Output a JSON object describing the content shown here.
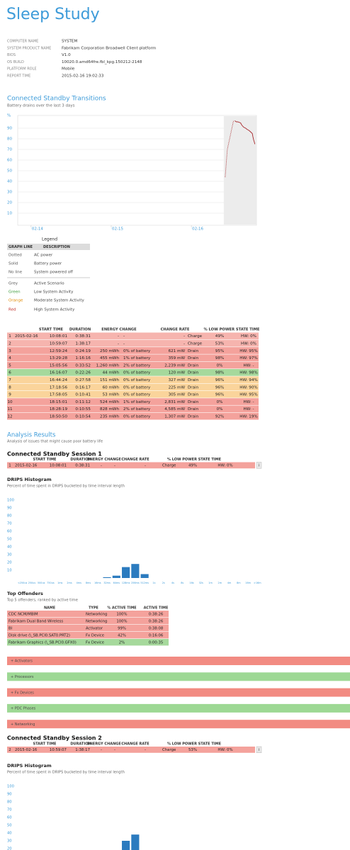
{
  "title": "Sleep Study",
  "system_info": {
    "rows": [
      [
        "COMPUTER NAME",
        "SYSTEM"
      ],
      [
        "SYSTEM PRODUCT NAME",
        "Fabrikam Corporation Broadwell Client platform"
      ],
      [
        "BIOS",
        "V1.0"
      ],
      [
        "OS BUILD",
        "10020.0.amd64fre.fbl_kpg.150212-2148"
      ],
      [
        "PLATFORM ROLE",
        "Mobile"
      ],
      [
        "REPORT TIME",
        "2015-02-16 19:02:33"
      ]
    ]
  },
  "transitions": {
    "heading": "Connected Standby Transitions",
    "subtitle": "Battery drains over the last 3 days",
    "chart": {
      "type": "line",
      "y_label": "%",
      "xlim": [
        "2015-02-13T20:00",
        "2015-02-16T19:30"
      ],
      "xticks": [
        {
          "value": "2015-02-14T00:00",
          "label": "02-14"
        },
        {
          "value": "2015-02-15T00:00",
          "label": "02-15"
        },
        {
          "value": "2015-02-16T00:00",
          "label": "02-16"
        }
      ],
      "ylim": [
        0,
        100
      ],
      "yticks": [
        10,
        20,
        30,
        40,
        50,
        60,
        70,
        80,
        90
      ],
      "grid": true,
      "series": [
        {
          "style": "dotted",
          "color": "#a8282c",
          "x": [
            "2015-02-16T10:08",
            "2015-02-16T10:46",
            "2015-02-16T12:37"
          ],
          "values": [
            44,
            70,
            97
          ]
        },
        {
          "style": "solid",
          "color": "#a8282c",
          "x": [
            "2015-02-16T12:59",
            "2015-02-16T13:29",
            "2015-02-16T13:53",
            "2015-02-16T14:45",
            "2015-02-16T15:05",
            "2015-02-16T15:39",
            "2015-02-16T16:16",
            "2015-02-16T16:38",
            "2015-02-16T17:12",
            "2015-02-16T17:35",
            "2015-02-16T18:15",
            "2015-02-16T18:26",
            "2015-02-16T18:39",
            "2015-02-16T18:51",
            "2015-02-16T19:01"
          ],
          "values": [
            97,
            96,
            96,
            95,
            93,
            91,
            90,
            89,
            88,
            87,
            85,
            82,
            79,
            77,
            75
          ]
        }
      ]
    }
  },
  "legend": {
    "title": "Legend",
    "columns": [
      "GRAPH LINE",
      "DESCRIPTION"
    ],
    "rows": [
      {
        "line": "Dotted",
        "description": "AC power",
        "color": "#555555"
      },
      {
        "line": "Solid",
        "description": "Battery power",
        "color": "#555555"
      },
      {
        "line": "No line",
        "description": "System powered off",
        "color": "#555555"
      },
      {
        "line": "Grey",
        "description": "Active Scenario",
        "color": "#555555"
      },
      {
        "line": "Green",
        "description": "Low System Activity",
        "color": "#3a9a3a"
      },
      {
        "line": "Orange",
        "description": "Moderate System Activity",
        "color": "#e08a00"
      },
      {
        "line": "Red",
        "description": "High System Activity",
        "color": "#c0302a"
      }
    ]
  },
  "sessions_table": {
    "columns": [
      "START TIME",
      "DURATION",
      "ENERGY CHANGE",
      "CHANGE RATE",
      "% LOW POWER STATE TIME"
    ],
    "rows": [
      {
        "color": "#f6b4ae",
        "cells": [
          "1",
          "2015-02-16",
          "10:08:01",
          "0:38:31",
          "-",
          "-",
          "-",
          "Charge",
          "49%",
          "HW: 0%"
        ]
      },
      {
        "color": "#f6b4ae",
        "cells": [
          "2",
          "",
          "10:59:07",
          "1:38:17",
          "-",
          "-",
          "-",
          "Charge",
          "53%",
          "HW: 0%"
        ]
      },
      {
        "color": "#f4a29c",
        "cells": [
          "3",
          "",
          "12:59:24",
          "0:24:19",
          "250 mWh",
          "0% of battery",
          "621 mW",
          "Drain",
          "95%",
          "HW: 95%"
        ]
      },
      {
        "color": "#f4a29c",
        "cells": [
          "4",
          "",
          "13:29:28",
          "1:16:16",
          "455 mWh",
          "1% of battery",
          "359 mW",
          "Drain",
          "98%",
          "HW: 97%"
        ]
      },
      {
        "color": "#f4a29c",
        "cells": [
          "5",
          "",
          "15:05:56",
          "0:33:52",
          "1,260 mWh",
          "2% of battery",
          "2,239 mW",
          "Drain",
          "0%",
          "HW: -"
        ]
      },
      {
        "color": "#a6d99c",
        "cells": [
          "6",
          "",
          "16:16:07",
          "0:22:26",
          "44 mWh",
          "0% of battery",
          "120 mW",
          "Drain",
          "98%",
          "HW: 98%"
        ]
      },
      {
        "color": "#fad49b",
        "cells": [
          "7",
          "",
          "16:44:24",
          "0:27:58",
          "151 mWh",
          "0% of battery",
          "327 mW",
          "Drain",
          "96%",
          "HW: 94%"
        ]
      },
      {
        "color": "#fad49b",
        "cells": [
          "8",
          "",
          "17:18:56",
          "0:16:17",
          "60 mWh",
          "0% of battery",
          "225 mW",
          "Drain",
          "96%",
          "HW: 90%"
        ]
      },
      {
        "color": "#fad49b",
        "cells": [
          "9",
          "",
          "17:58:05",
          "0:10:41",
          "53 mWh",
          "0% of battery",
          "305 mW",
          "Drain",
          "96%",
          "HW: 95%"
        ]
      },
      {
        "color": "#f4a29c",
        "cells": [
          "10",
          "",
          "18:15:01",
          "0:11:12",
          "524 mWh",
          "1% of battery",
          "2,831 mW",
          "Drain",
          "0%",
          "HW: -"
        ]
      },
      {
        "color": "#f4a29c",
        "cells": [
          "11",
          "",
          "18:28:19",
          "0:10:55",
          "828 mWh",
          "2% of battery",
          "4,585 mW",
          "Drain",
          "0%",
          "HW: -"
        ]
      },
      {
        "color": "#f4a29c",
        "cells": [
          "12",
          "",
          "18:50:50",
          "0:10:54",
          "235 mWh",
          "0% of battery",
          "1,307 mW",
          "Drain",
          "92%",
          "HW: 19%"
        ]
      }
    ]
  },
  "analysis": {
    "heading": "Analysis Results",
    "subtitle": "Analysis of issues that might cause poor battery life"
  },
  "session1": {
    "title": "Connected Standby Session 1",
    "table": {
      "columns": [
        "START TIME",
        "DURATION",
        "ENERGY CHANGE",
        "CHANGE RATE",
        "% LOW POWER STATE TIME"
      ],
      "rows": [
        {
          "color": "#f4a29c",
          "cells": [
            "1",
            "2015-02-16",
            "10:08:01",
            "0:38:31",
            "-",
            "-",
            "-",
            "Charge",
            "49%",
            "HW: 0%"
          ]
        }
      ],
      "info": "i"
    },
    "histogram": {
      "title": "DRIPS Histogram",
      "subtitle": "Percent of time spent in DRIPS bucketed by time interval length",
      "type": "bar",
      "color": "#2b7bbf",
      "categories": [
        "<250us",
        "250us",
        "500us",
        "750us",
        "1ms",
        "2ms",
        "4ms",
        "8ms",
        "16ms",
        "32ms",
        "64ms",
        "128ms",
        "256ms",
        "512ms",
        "1s",
        "2s",
        "4s",
        "8s",
        "16s",
        "32s",
        "1m",
        "2m",
        "4m",
        "8m",
        "16m",
        ">16m"
      ],
      "values": [
        0,
        0,
        0,
        0,
        0,
        0,
        0,
        0,
        0,
        1,
        3,
        14,
        18,
        5,
        0,
        0,
        0,
        0,
        0,
        0,
        0,
        0,
        0,
        0,
        0,
        0
      ],
      "ylim": [
        0,
        100
      ],
      "yticks": [
        10,
        20,
        30,
        40,
        50,
        60,
        70,
        80,
        90,
        100
      ]
    },
    "offenders": {
      "title": "Top Offenders",
      "subtitle": "Top 5 offenders, ranked by active time",
      "columns": [
        "NAME",
        "TYPE",
        "% ACTIVE TIME",
        "ACTIVE TIME"
      ],
      "rows": [
        {
          "color": "#f4a29c",
          "cells": [
            "CDC NCM/MBIM",
            "Networking",
            "100%",
            "0:38:26"
          ]
        },
        {
          "color": "#f4a29c",
          "cells": [
            "Fabrikam Dual Band Wireless",
            "Networking",
            "100%",
            "0:38:26"
          ]
        },
        {
          "color": "#f4a29c",
          "cells": [
            "BI",
            "Activator",
            "99%",
            "0:38:08"
          ]
        },
        {
          "color": "#f4a29c",
          "cells": [
            "Disk drive (\\_SB.PCI0.SAT0.PRT2)",
            "Fx Device",
            "42%",
            "0:16:06"
          ]
        },
        {
          "color": "#a6d99c",
          "cells": [
            "Fabrikam Graphics (\\_SB.PCI0.GFX0)",
            "Fx Device",
            "2%",
            "0:00:35"
          ]
        }
      ]
    },
    "groups": [
      {
        "label": "+ Activators",
        "color": "#f28b82"
      },
      {
        "label": "+ Processors",
        "color": "#9dd894"
      },
      {
        "label": "+ Fx Devices",
        "color": "#f28b82"
      },
      {
        "label": "+ PDC Phases",
        "color": "#9dd894"
      },
      {
        "label": "+ Networking",
        "color": "#f28b82"
      }
    ]
  },
  "session2": {
    "title": "Connected Standby Session 2",
    "table": {
      "columns": [
        "START TIME",
        "DURATION",
        "ENERGY CHANGE",
        "CHANGE RATE",
        "% LOW POWER STATE TIME"
      ],
      "rows": [
        {
          "color": "#f4a29c",
          "cells": [
            "2",
            "2015-02-16",
            "10:59:07",
            "1:38:17",
            "-",
            "-",
            "-",
            "Charge",
            "53%",
            "HW: 0%"
          ]
        }
      ],
      "info": "i"
    },
    "histogram": {
      "title": "DRIPS Histogram",
      "subtitle": "Percent of time spent in DRIPS bucketed by time interval length",
      "type": "bar",
      "color": "#2b7bbf",
      "values": [
        0,
        0,
        0,
        0,
        0,
        0,
        0,
        0,
        0,
        0,
        0,
        30,
        38,
        0,
        0,
        0,
        0,
        0,
        0,
        0,
        0,
        0,
        0,
        0,
        0,
        0
      ],
      "ylim": [
        0,
        100
      ],
      "yticks": [
        20,
        30,
        40,
        50,
        60,
        70,
        80,
        90,
        100
      ]
    }
  }
}
